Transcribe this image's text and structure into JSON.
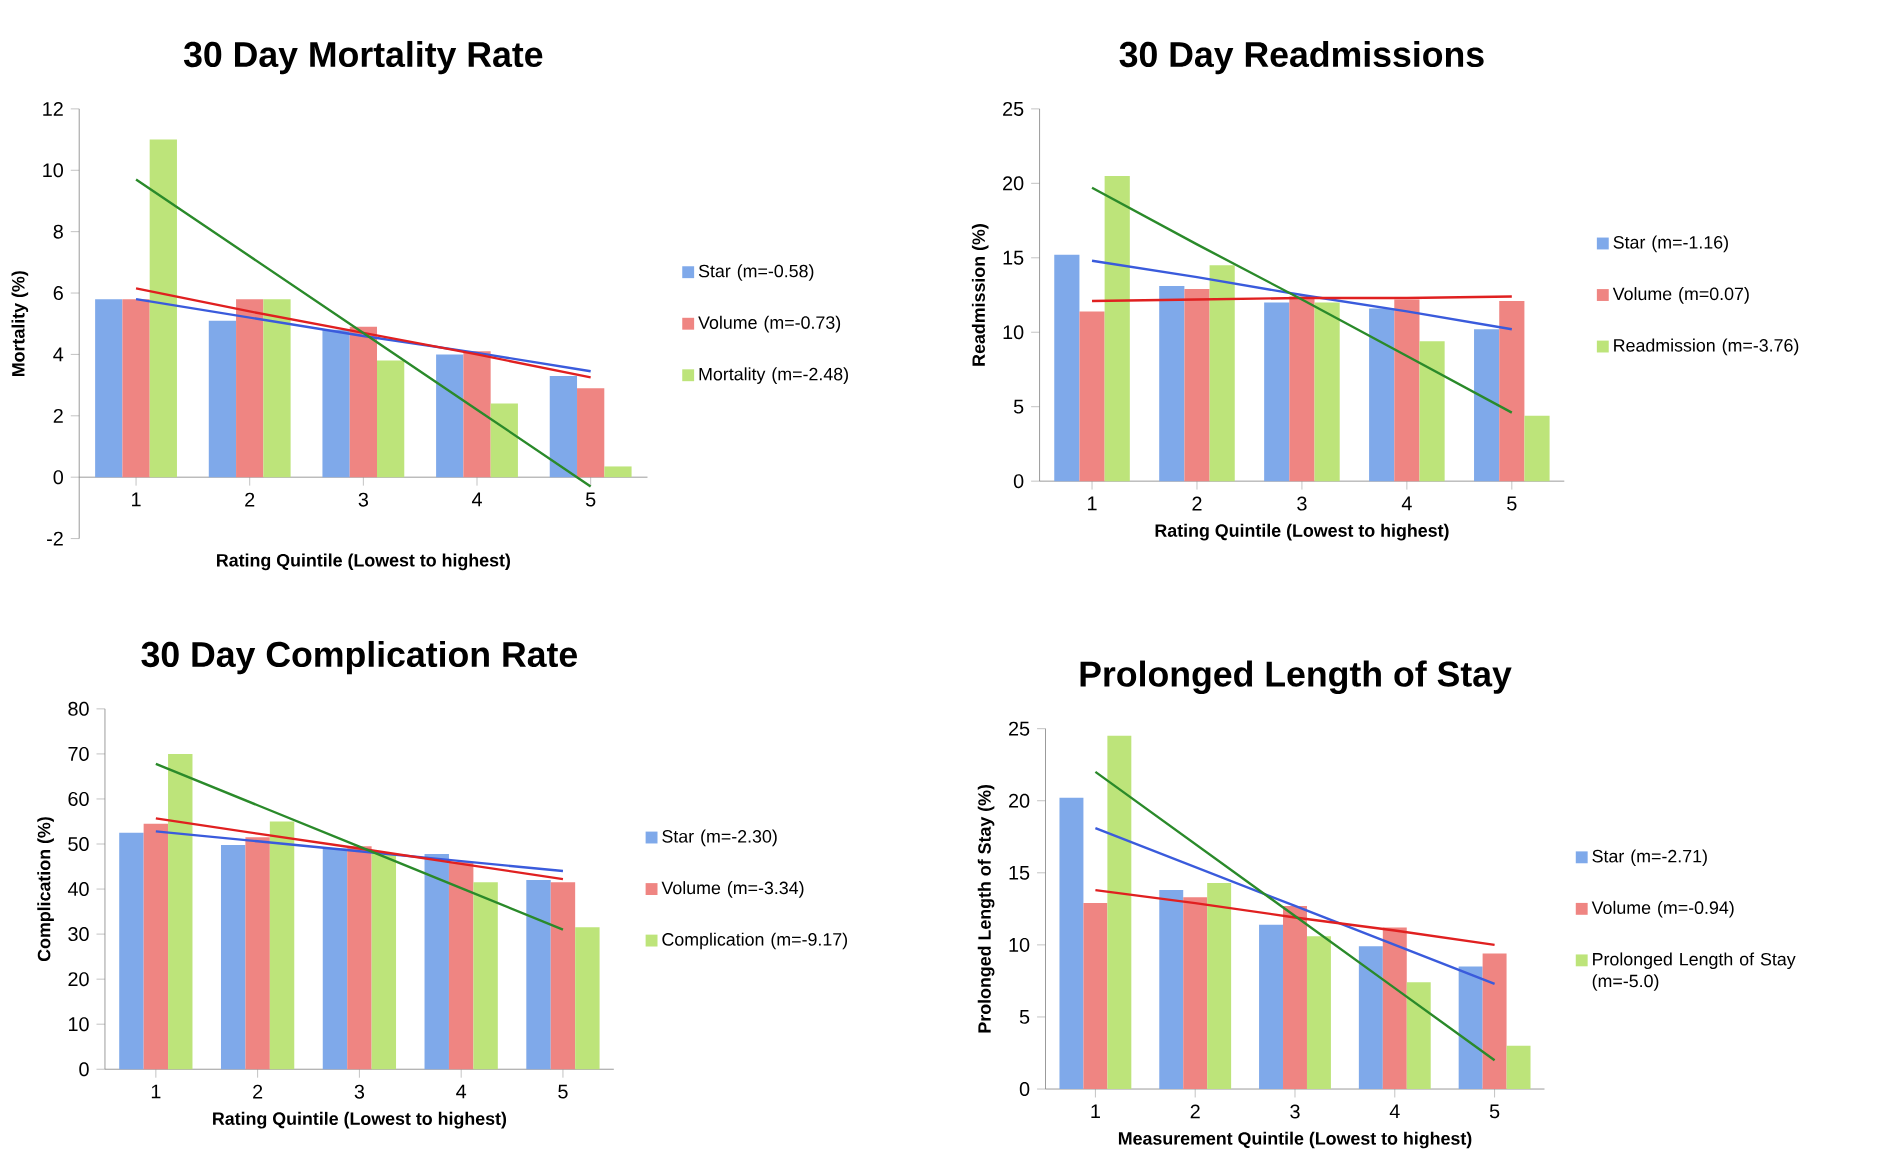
{
  "chart_data": [
    {
      "type": "bar",
      "title": "30 Day Mortality Rate",
      "xlabel": "Rating Quintile  (Lowest to highest)",
      "ylabel": "Mortality (%)",
      "xlim": [
        0.5,
        5.5
      ],
      "xticks": [
        1,
        2,
        3,
        4,
        5
      ],
      "ylim": [
        -2,
        12
      ],
      "yticks": [
        -2,
        0,
        2,
        4,
        6,
        8,
        10,
        12
      ],
      "legend": "right",
      "x": [
        1,
        2,
        3,
        4,
        5
      ],
      "series": [
        {
          "name": "Star (m=-0.58)",
          "color": "#7fa9ea",
          "values": [
            5.8,
            5.1,
            4.8,
            4.0,
            3.3
          ]
        },
        {
          "name": "Volume (m=-0.73)",
          "color": "#ef8582",
          "values": [
            5.8,
            5.8,
            4.9,
            4.1,
            2.9
          ]
        },
        {
          "name": "Mortality (m=-2.48)",
          "color": "#bde47a",
          "values": [
            11.0,
            5.8,
            3.8,
            2.4,
            0.35
          ]
        },
        {
          "type": "line",
          "color": "#3a5bdc",
          "values": [
            5.8,
            5.2,
            4.6,
            4.05,
            3.45
          ]
        },
        {
          "type": "line",
          "color": "#e02020",
          "values": [
            6.15,
            5.4,
            4.7,
            4.0,
            3.25
          ]
        },
        {
          "type": "line",
          "color": "#2a8a2a",
          "values": [
            9.7,
            7.2,
            4.7,
            2.2,
            -0.3
          ]
        }
      ]
    },
    {
      "type": "bar",
      "title": "30 Day Readmissions",
      "xlabel": "Rating Quintile  (Lowest to highest)",
      "ylabel": "Readmission  (%)",
      "xlim": [
        0.5,
        5.5
      ],
      "xticks": [
        1,
        2,
        3,
        4,
        5
      ],
      "ylim": [
        0,
        25
      ],
      "yticks": [
        0,
        5,
        10,
        15,
        20,
        25
      ],
      "legend": "right",
      "x": [
        1,
        2,
        3,
        4,
        5
      ],
      "series": [
        {
          "name": "Star  (m=-1.16)",
          "color": "#7fa9ea",
          "values": [
            15.2,
            13.1,
            12.0,
            11.6,
            10.2
          ]
        },
        {
          "name": "Volume  (m=0.07)",
          "color": "#ef8582",
          "values": [
            11.4,
            12.9,
            12.4,
            12.2,
            12.1
          ]
        },
        {
          "name": "Readmission  (m=-3.76)",
          "color": "#bde47a",
          "values": [
            20.5,
            14.5,
            12.0,
            9.4,
            4.4
          ]
        },
        {
          "type": "line",
          "color": "#3a5bdc",
          "values": [
            14.8,
            13.7,
            12.5,
            11.4,
            10.2
          ]
        },
        {
          "type": "line",
          "color": "#e02020",
          "values": [
            12.1,
            12.2,
            12.3,
            12.3,
            12.4
          ]
        },
        {
          "type": "line",
          "color": "#2a8a2a",
          "values": [
            19.7,
            15.9,
            12.2,
            8.4,
            4.6
          ]
        }
      ]
    },
    {
      "type": "bar",
      "title": "30 Day Complication Rate",
      "xlabel": "Rating Quintile  (Lowest to highest)",
      "ylabel": "Complication  (%)",
      "xlim": [
        0.5,
        5.5
      ],
      "xticks": [
        1,
        2,
        3,
        4,
        5
      ],
      "ylim": [
        0,
        80
      ],
      "yticks": [
        0,
        10,
        20,
        30,
        40,
        50,
        60,
        70,
        80
      ],
      "legend": "right",
      "x": [
        1,
        2,
        3,
        4,
        5
      ],
      "series": [
        {
          "name": "Star  (m=-2.30)",
          "color": "#7fa9ea",
          "values": [
            52.5,
            49.8,
            49,
            47.8,
            42
          ]
        },
        {
          "name": "Volume  (m=-3.34)",
          "color": "#ef8582",
          "values": [
            54.5,
            51.5,
            49.5,
            46,
            41.5
          ]
        },
        {
          "name": "Complication  (m=-9.17)",
          "color": "#bde47a",
          "values": [
            70,
            55,
            48,
            41.5,
            31.5
          ]
        },
        {
          "type": "line",
          "color": "#3a5bdc",
          "values": [
            52.8,
            50.6,
            48.4,
            46.2,
            44
          ]
        },
        {
          "type": "line",
          "color": "#e02020",
          "values": [
            55.7,
            52.3,
            49,
            45.6,
            42.2
          ]
        },
        {
          "type": "line",
          "color": "#2a8a2a",
          "values": [
            67.8,
            58.6,
            49.4,
            40.2,
            31
          ]
        }
      ]
    },
    {
      "type": "bar",
      "title": "Prolonged Length of Stay",
      "xlabel": "Measurement Quintile  (Lowest to highest)",
      "ylabel": "Prolonged  Length of Stay (%)",
      "xlim": [
        0.5,
        5.5
      ],
      "xticks": [
        1,
        2,
        3,
        4,
        5
      ],
      "ylim": [
        0,
        25
      ],
      "yticks": [
        0,
        5,
        10,
        15,
        20,
        25
      ],
      "legend": "right",
      "x": [
        1,
        2,
        3,
        4,
        5
      ],
      "series": [
        {
          "name": "Star  (m=-2.71)",
          "color": "#7fa9ea",
          "values": [
            20.2,
            13.8,
            11.4,
            9.9,
            8.5
          ]
        },
        {
          "name": "Volume  (m=-0.94)",
          "color": "#ef8582",
          "values": [
            12.9,
            13.3,
            12.7,
            11.2,
            9.4
          ]
        },
        {
          "name": "Prolonged Length of Stay (m=-5.0)",
          "color": "#bde47a",
          "values": [
            24.5,
            14.3,
            10.6,
            7.4,
            3.0
          ]
        },
        {
          "type": "line",
          "color": "#3a5bdc",
          "values": [
            18.1,
            15.4,
            12.7,
            10,
            7.3
          ]
        },
        {
          "type": "line",
          "color": "#e02020",
          "values": [
            13.8,
            12.9,
            11.9,
            11,
            10
          ]
        },
        {
          "type": "line",
          "color": "#2a8a2a",
          "values": [
            22,
            17,
            12,
            7,
            2
          ]
        }
      ]
    }
  ]
}
